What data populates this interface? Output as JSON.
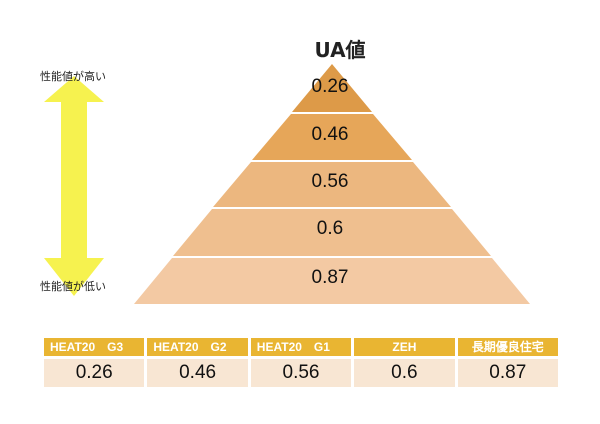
{
  "title": "UA値",
  "axis": {
    "high_label": "性能値が高い",
    "low_label": "性能値が低い"
  },
  "pyramid_levels": [
    "0.26",
    "0.46",
    "0.56",
    "0.6",
    "0.87"
  ],
  "colors": {
    "arrow": "#f6f24f",
    "header": "#e9b532",
    "cell": "#f8e6d3",
    "levels": [
      "#dd9a48",
      "#e6a659",
      "#ecb77f",
      "#efbf8f",
      "#f3c9a3"
    ]
  },
  "table": {
    "headers": [
      "HEAT20　G3",
      "HEAT20　G2",
      "HEAT20　G1",
      "ZEH",
      "長期優良住宅"
    ],
    "values": [
      "0.26",
      "0.46",
      "0.56",
      "0.6",
      "0.87"
    ]
  }
}
